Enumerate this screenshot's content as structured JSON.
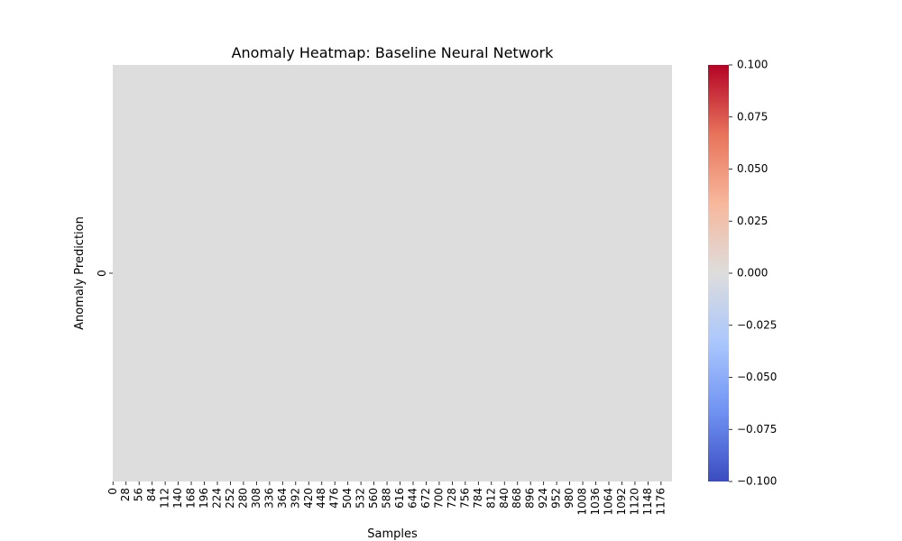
{
  "chart_data": {
    "type": "heatmap",
    "title": "Anomaly Heatmap: Baseline Neural Network",
    "xlabel": "Samples",
    "ylabel": "Anomaly Prediction",
    "x_tick_labels": [
      "0",
      "28",
      "56",
      "84",
      "112",
      "140",
      "168",
      "196",
      "224",
      "252",
      "280",
      "308",
      "336",
      "364",
      "392",
      "420",
      "448",
      "476",
      "504",
      "532",
      "560",
      "588",
      "616",
      "644",
      "672",
      "700",
      "728",
      "756",
      "784",
      "812",
      "840",
      "868",
      "896",
      "924",
      "952",
      "980",
      "1008",
      "1036",
      "1064",
      "1092",
      "1120",
      "1148",
      "1176"
    ],
    "y_tick_labels": [
      "0"
    ],
    "n_samples": 1200,
    "rows": 1,
    "cell_value": 0.0,
    "colorbar": {
      "colormap": "coolwarm",
      "vmin": -0.1,
      "vmax": 0.1,
      "tick_labels": [
        "0.100",
        "0.075",
        "0.050",
        "0.025",
        "0.000",
        "−0.025",
        "−0.050",
        "−0.075",
        "−0.100"
      ],
      "colors": [
        "#3b4cc0",
        "#6f92f3",
        "#aac7fd",
        "#dddddd",
        "#f7b89c",
        "#e7745b",
        "#b40426"
      ]
    }
  }
}
